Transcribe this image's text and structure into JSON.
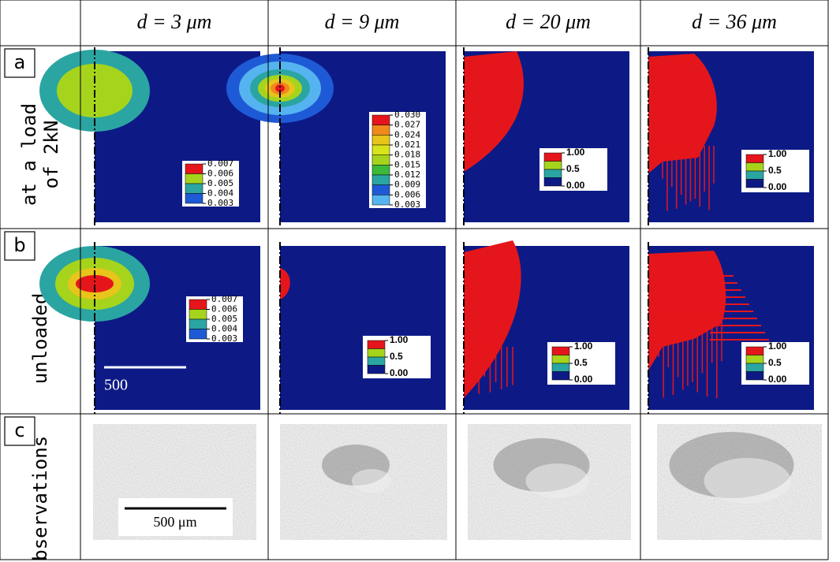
{
  "header": {
    "columns": [
      "d = 3 μm",
      "d = 9 μm",
      "d = 20 μm",
      "d = 36 μm"
    ]
  },
  "rows": [
    {
      "letter": "a",
      "label_lines": [
        "at a load",
        "of 2kN"
      ],
      "legends": [
        [
          "0.007",
          "0.006",
          "0.005",
          "0.004",
          "0.003"
        ],
        [
          "0.030",
          "0.027",
          "0.024",
          "0.021",
          "0.018",
          "0.015",
          "0.012",
          "0.009",
          "0.006",
          "0.003"
        ],
        [
          "1.00",
          "0.5",
          "0.00"
        ],
        [
          "1.00",
          "0.5",
          "0.00"
        ]
      ]
    },
    {
      "letter": "b",
      "label_lines": [
        "unloaded"
      ],
      "legends": [
        [
          "0.007",
          "0.006",
          "0.005",
          "0.004",
          "0.003"
        ],
        [
          "1.00",
          "0.5",
          "0.00"
        ],
        [
          "1.00",
          "0.5",
          "0.00"
        ],
        [
          "1.00",
          "0.5",
          "0.00"
        ]
      ]
    },
    {
      "letter": "c",
      "label_lines": [
        "observations"
      ]
    }
  ],
  "scale_bars": {
    "simulation": "500",
    "observation": "500 μm"
  }
}
